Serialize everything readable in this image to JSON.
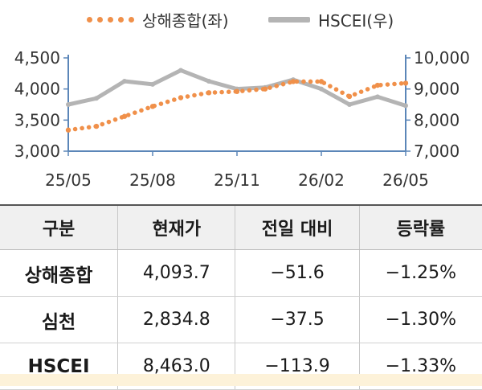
{
  "legend": {
    "left_series": "상해종합(좌)",
    "right_series": "HSCEI(우)"
  },
  "colors": {
    "shanghai": "#f0904a",
    "hscei": "#b4b4b4",
    "axis": "#5b86b8"
  },
  "chart_data": {
    "type": "line",
    "x_ticks": [
      "25/05",
      "25/08",
      "25/11",
      "26/02",
      "26/05"
    ],
    "x_range": [
      "2025-05",
      "2026-05"
    ],
    "y_left": {
      "ticks": [
        "3,000",
        "3,500",
        "4,000",
        "4,500"
      ],
      "range": [
        3000,
        4500
      ]
    },
    "y_right": {
      "ticks": [
        "7,000",
        "8,000",
        "9,000",
        "10,000"
      ],
      "range": [
        7000,
        10000
      ]
    },
    "series": [
      {
        "name": "상해종합(좌)",
        "axis": "left",
        "style": "dotted",
        "x": [
          "2025-05",
          "2025-06",
          "2025-07",
          "2025-08",
          "2025-09",
          "2025-10",
          "2025-11",
          "2025-12",
          "2026-01",
          "2026-02",
          "2026-03",
          "2026-04",
          "2026-05"
        ],
        "values": [
          3340,
          3400,
          3560,
          3720,
          3860,
          3940,
          3960,
          4000,
          4120,
          4120,
          3880,
          4060,
          4094
        ]
      },
      {
        "name": "HSCEI(우)",
        "axis": "right",
        "style": "solid",
        "x": [
          "2025-05",
          "2025-06",
          "2025-07",
          "2025-08",
          "2025-09",
          "2025-10",
          "2025-11",
          "2025-12",
          "2026-01",
          "2026-02",
          "2026-03",
          "2026-04",
          "2026-05"
        ],
        "values": [
          8500,
          8700,
          9250,
          9150,
          9600,
          9250,
          9000,
          9050,
          9300,
          9000,
          8500,
          8750,
          8463
        ]
      }
    ]
  },
  "table": {
    "headers": [
      "구분",
      "현재가",
      "전일 대비",
      "등락률"
    ],
    "rows": [
      [
        "상해종합",
        "4,093.7",
        "−51.6",
        "−1.25%"
      ],
      [
        "심천",
        "2,834.8",
        "−37.5",
        "−1.30%"
      ],
      [
        "HSCEI",
        "8,463.0",
        "−113.9",
        "−1.33%"
      ]
    ]
  }
}
